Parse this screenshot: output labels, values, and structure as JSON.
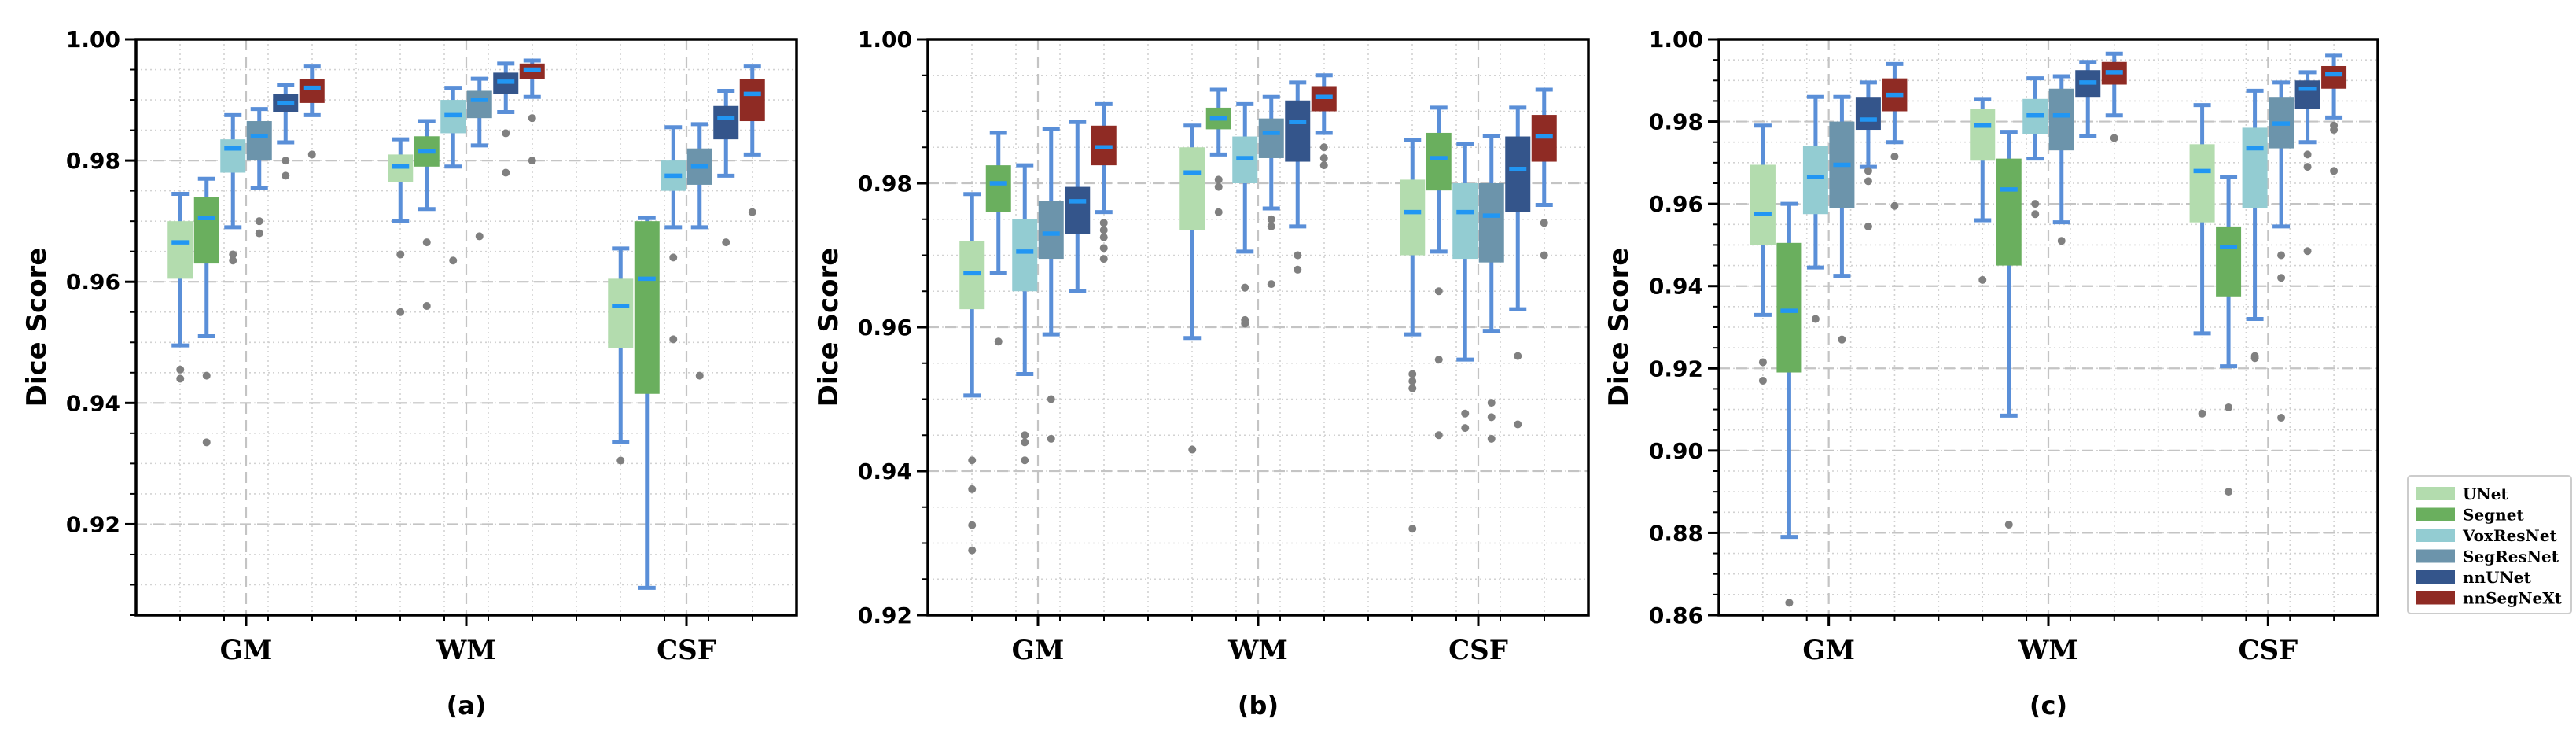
{
  "legend": {
    "entries": [
      {
        "name": "UNet",
        "color": "#b3dcae"
      },
      {
        "name": "Segnet",
        "color": "#6aaf5e"
      },
      {
        "name": "VoxResNet",
        "color": "#93ccd2"
      },
      {
        "name": "SegResNet",
        "color": "#6c94ab"
      },
      {
        "name": "nnUNet",
        "color": "#34558b"
      },
      {
        "name": "nnSegNeXt",
        "color": "#8f2b24"
      }
    ]
  },
  "style": {
    "whisker_color": "#5a8fd8",
    "median_color": "#2196f3",
    "outlier_color": "#808080"
  },
  "chart_data": [
    {
      "type": "box",
      "panel_label": "(a)",
      "ylabel": "Dice Score",
      "ylim": [
        0.905,
        1.0
      ],
      "yticks": [
        "0.92",
        "0.94",
        "0.96",
        "0.98",
        "1.00"
      ],
      "categories": [
        "GM",
        "WM",
        "CSF"
      ],
      "series": [
        {
          "name": "UNet",
          "boxes": [
            {
              "q1": 0.9605,
              "median": 0.9665,
              "q3": 0.97,
              "whislo": 0.9495,
              "whishi": 0.9745,
              "outliers": [
                0.9455,
                0.944
              ]
            },
            {
              "q1": 0.9765,
              "median": 0.979,
              "q3": 0.981,
              "whislo": 0.97,
              "whishi": 0.9835,
              "outliers": [
                0.9645,
                0.955
              ]
            },
            {
              "q1": 0.949,
              "median": 0.956,
              "q3": 0.9605,
              "whislo": 0.9335,
              "whishi": 0.9655,
              "outliers": [
                0.9305
              ]
            }
          ]
        },
        {
          "name": "Segnet",
          "boxes": [
            {
              "q1": 0.963,
              "median": 0.9705,
              "q3": 0.974,
              "whislo": 0.951,
              "whishi": 0.977,
              "outliers": [
                0.9445,
                0.9335
              ]
            },
            {
              "q1": 0.979,
              "median": 0.9815,
              "q3": 0.984,
              "whislo": 0.972,
              "whishi": 0.9865,
              "outliers": [
                0.9665,
                0.956
              ]
            },
            {
              "q1": 0.9415,
              "median": 0.9605,
              "q3": 0.97,
              "whislo": 0.9095,
              "whishi": 0.9705,
              "outliers": []
            }
          ]
        },
        {
          "name": "VoxResNet",
          "boxes": [
            {
              "q1": 0.978,
              "median": 0.982,
              "q3": 0.9835,
              "whislo": 0.969,
              "whishi": 0.9875,
              "outliers": [
                0.9645,
                0.9635
              ]
            },
            {
              "q1": 0.9845,
              "median": 0.9875,
              "q3": 0.99,
              "whislo": 0.979,
              "whishi": 0.992,
              "outliers": [
                0.9635
              ]
            },
            {
              "q1": 0.975,
              "median": 0.9775,
              "q3": 0.98,
              "whislo": 0.969,
              "whishi": 0.9855,
              "outliers": [
                0.9505,
                0.964
              ]
            }
          ]
        },
        {
          "name": "SegResNet",
          "boxes": [
            {
              "q1": 0.98,
              "median": 0.984,
              "q3": 0.9865,
              "whislo": 0.9755,
              "whishi": 0.9885,
              "outliers": [
                0.97,
                0.968
              ]
            },
            {
              "q1": 0.987,
              "median": 0.99,
              "q3": 0.9915,
              "whislo": 0.9825,
              "whishi": 0.9935,
              "outliers": [
                0.9675
              ]
            },
            {
              "q1": 0.976,
              "median": 0.979,
              "q3": 0.982,
              "whislo": 0.969,
              "whishi": 0.986,
              "outliers": [
                0.9445
              ]
            }
          ]
        },
        {
          "name": "nnUNet",
          "boxes": [
            {
              "q1": 0.988,
              "median": 0.9895,
              "q3": 0.991,
              "whislo": 0.983,
              "whishi": 0.9925,
              "outliers": [
                0.98,
                0.9775
              ]
            },
            {
              "q1": 0.991,
              "median": 0.993,
              "q3": 0.9945,
              "whislo": 0.988,
              "whishi": 0.996,
              "outliers": [
                0.9845,
                0.978
              ]
            },
            {
              "q1": 0.9835,
              "median": 0.987,
              "q3": 0.989,
              "whislo": 0.9775,
              "whishi": 0.9915,
              "outliers": [
                0.9665
              ]
            }
          ]
        },
        {
          "name": "nnSegNeXt",
          "boxes": [
            {
              "q1": 0.9895,
              "median": 0.992,
              "q3": 0.9935,
              "whislo": 0.9875,
              "whishi": 0.9955,
              "outliers": [
                0.981
              ]
            },
            {
              "q1": 0.9935,
              "median": 0.995,
              "q3": 0.996,
              "whislo": 0.9905,
              "whishi": 0.9965,
              "outliers": [
                0.987,
                0.98
              ]
            },
            {
              "q1": 0.9865,
              "median": 0.991,
              "q3": 0.9935,
              "whislo": 0.981,
              "whishi": 0.9955,
              "outliers": [
                0.9715
              ]
            }
          ]
        }
      ]
    },
    {
      "type": "box",
      "panel_label": "(b)",
      "ylabel": "Dice Score",
      "ylim": [
        0.92,
        1.0
      ],
      "yticks": [
        "0.92",
        "0.94",
        "0.96",
        "0.98",
        "1.00"
      ],
      "categories": [
        "GM",
        "WM",
        "CSF"
      ],
      "series": [
        {
          "name": "UNet",
          "boxes": [
            {
              "q1": 0.9625,
              "median": 0.9675,
              "q3": 0.972,
              "whislo": 0.9505,
              "whishi": 0.9785,
              "outliers": [
                0.9415,
                0.9375,
                0.9325,
                0.929
              ]
            },
            {
              "q1": 0.9735,
              "median": 0.9815,
              "q3": 0.985,
              "whislo": 0.9585,
              "whishi": 0.988,
              "outliers": [
                0.943
              ]
            },
            {
              "q1": 0.97,
              "median": 0.976,
              "q3": 0.9805,
              "whislo": 0.959,
              "whishi": 0.986,
              "outliers": [
                0.9535,
                0.9525,
                0.9515,
                0.932
              ]
            }
          ]
        },
        {
          "name": "Segnet",
          "boxes": [
            {
              "q1": 0.976,
              "median": 0.98,
              "q3": 0.9825,
              "whislo": 0.9675,
              "whishi": 0.987,
              "outliers": [
                0.958
              ]
            },
            {
              "q1": 0.9875,
              "median": 0.989,
              "q3": 0.9905,
              "whislo": 0.984,
              "whishi": 0.993,
              "outliers": [
                0.9805,
                0.9795,
                0.976
              ]
            },
            {
              "q1": 0.979,
              "median": 0.9835,
              "q3": 0.987,
              "whislo": 0.9705,
              "whishi": 0.9905,
              "outliers": [
                0.965,
                0.9555,
                0.945
              ]
            }
          ]
        },
        {
          "name": "VoxResNet",
          "boxes": [
            {
              "q1": 0.965,
              "median": 0.9705,
              "q3": 0.975,
              "whislo": 0.9535,
              "whishi": 0.9825,
              "outliers": [
                0.945,
                0.944,
                0.9415
              ]
            },
            {
              "q1": 0.98,
              "median": 0.9835,
              "q3": 0.9865,
              "whislo": 0.9705,
              "whishi": 0.991,
              "outliers": [
                0.9655,
                0.9605,
                0.961
              ]
            },
            {
              "q1": 0.9695,
              "median": 0.976,
              "q3": 0.98,
              "whislo": 0.9555,
              "whishi": 0.9855,
              "outliers": [
                0.946,
                0.948
              ]
            }
          ]
        },
        {
          "name": "SegResNet",
          "boxes": [
            {
              "q1": 0.9695,
              "median": 0.973,
              "q3": 0.9775,
              "whislo": 0.959,
              "whishi": 0.9875,
              "outliers": [
                0.95,
                0.9445
              ]
            },
            {
              "q1": 0.9835,
              "median": 0.987,
              "q3": 0.989,
              "whislo": 0.9765,
              "whishi": 0.992,
              "outliers": [
                0.975,
                0.974,
                0.966
              ]
            },
            {
              "q1": 0.969,
              "median": 0.9755,
              "q3": 0.98,
              "whislo": 0.9595,
              "whishi": 0.9865,
              "outliers": [
                0.9495,
                0.9475,
                0.9445
              ]
            }
          ]
        },
        {
          "name": "nnUNet",
          "boxes": [
            {
              "q1": 0.973,
              "median": 0.9775,
              "q3": 0.9795,
              "whislo": 0.965,
              "whishi": 0.9885,
              "outliers": []
            },
            {
              "q1": 0.983,
              "median": 0.9885,
              "q3": 0.9915,
              "whislo": 0.974,
              "whishi": 0.994,
              "outliers": [
                0.97,
                0.968
              ]
            },
            {
              "q1": 0.976,
              "median": 0.982,
              "q3": 0.9865,
              "whislo": 0.9625,
              "whishi": 0.9905,
              "outliers": [
                0.956,
                0.9465
              ]
            }
          ]
        },
        {
          "name": "nnSegNeXt",
          "boxes": [
            {
              "q1": 0.9825,
              "median": 0.985,
              "q3": 0.988,
              "whislo": 0.976,
              "whishi": 0.991,
              "outliers": [
                0.9745,
                0.9735,
                0.9725,
                0.971,
                0.9695
              ]
            },
            {
              "q1": 0.99,
              "median": 0.992,
              "q3": 0.9935,
              "whislo": 0.987,
              "whishi": 0.995,
              "outliers": [
                0.985,
                0.9835,
                0.9825
              ]
            },
            {
              "q1": 0.983,
              "median": 0.9865,
              "q3": 0.9895,
              "whislo": 0.977,
              "whishi": 0.993,
              "outliers": [
                0.9745,
                0.97
              ]
            }
          ]
        }
      ]
    },
    {
      "type": "box",
      "panel_label": "(c)",
      "ylabel": "Dice Score",
      "ylim": [
        0.86,
        1.0
      ],
      "yticks": [
        "0.86",
        "0.88",
        "0.90",
        "0.92",
        "0.94",
        "0.96",
        "0.98",
        "1.00"
      ],
      "categories": [
        "GM",
        "WM",
        "CSF"
      ],
      "series": [
        {
          "name": "UNet",
          "boxes": [
            {
              "q1": 0.95,
              "median": 0.9575,
              "q3": 0.9695,
              "whislo": 0.933,
              "whishi": 0.979,
              "outliers": [
                0.9215,
                0.917
              ]
            },
            {
              "q1": 0.9705,
              "median": 0.979,
              "q3": 0.983,
              "whislo": 0.956,
              "whishi": 0.9855,
              "outliers": [
                0.9415
              ]
            },
            {
              "q1": 0.9555,
              "median": 0.968,
              "q3": 0.9745,
              "whislo": 0.9285,
              "whishi": 0.984,
              "outliers": [
                0.909
              ]
            }
          ]
        },
        {
          "name": "Segnet",
          "boxes": [
            {
              "q1": 0.919,
              "median": 0.934,
              "q3": 0.9505,
              "whislo": 0.879,
              "whishi": 0.96,
              "outliers": [
                0.863
              ]
            },
            {
              "q1": 0.945,
              "median": 0.9635,
              "q3": 0.971,
              "whislo": 0.9085,
              "whishi": 0.9775,
              "outliers": [
                0.882
              ]
            },
            {
              "q1": 0.9375,
              "median": 0.9495,
              "q3": 0.9545,
              "whislo": 0.9205,
              "whishi": 0.9665,
              "outliers": [
                0.9105,
                0.89
              ]
            }
          ]
        },
        {
          "name": "VoxResNet",
          "boxes": [
            {
              "q1": 0.9575,
              "median": 0.9665,
              "q3": 0.974,
              "whislo": 0.9445,
              "whishi": 0.986,
              "outliers": [
                0.932
              ]
            },
            {
              "q1": 0.977,
              "median": 0.9815,
              "q3": 0.9855,
              "whislo": 0.971,
              "whishi": 0.9905,
              "outliers": [
                0.96,
                0.9575
              ]
            },
            {
              "q1": 0.959,
              "median": 0.9735,
              "q3": 0.9785,
              "whislo": 0.932,
              "whishi": 0.9875,
              "outliers": [
                0.923,
                0.9225
              ]
            }
          ]
        },
        {
          "name": "SegResNet",
          "boxes": [
            {
              "q1": 0.959,
              "median": 0.9695,
              "q3": 0.98,
              "whislo": 0.9425,
              "whishi": 0.986,
              "outliers": [
                0.927
              ]
            },
            {
              "q1": 0.973,
              "median": 0.9815,
              "q3": 0.988,
              "whislo": 0.9555,
              "whishi": 0.991,
              "outliers": [
                0.951
              ]
            },
            {
              "q1": 0.9735,
              "median": 0.9795,
              "q3": 0.986,
              "whislo": 0.9545,
              "whishi": 0.9895,
              "outliers": [
                0.9475,
                0.942,
                0.908
              ]
            }
          ]
        },
        {
          "name": "nnUNet",
          "boxes": [
            {
              "q1": 0.978,
              "median": 0.9805,
              "q3": 0.986,
              "whislo": 0.969,
              "whishi": 0.9895,
              "outliers": [
                0.968,
                0.9655,
                0.9545
              ]
            },
            {
              "q1": 0.986,
              "median": 0.9895,
              "q3": 0.9925,
              "whislo": 0.9765,
              "whishi": 0.9945,
              "outliers": []
            },
            {
              "q1": 0.983,
              "median": 0.988,
              "q3": 0.99,
              "whislo": 0.975,
              "whishi": 0.992,
              "outliers": [
                0.972,
                0.969,
                0.9485
              ]
            }
          ]
        },
        {
          "name": "nnSegNeXt",
          "boxes": [
            {
              "q1": 0.9825,
              "median": 0.9865,
              "q3": 0.9905,
              "whislo": 0.975,
              "whishi": 0.994,
              "outliers": [
                0.9715,
                0.9595
              ]
            },
            {
              "q1": 0.989,
              "median": 0.992,
              "q3": 0.9945,
              "whislo": 0.9815,
              "whishi": 0.9965,
              "outliers": [
                0.976
              ]
            },
            {
              "q1": 0.988,
              "median": 0.9915,
              "q3": 0.9935,
              "whislo": 0.981,
              "whishi": 0.996,
              "outliers": [
                0.979,
                0.978,
                0.968
              ]
            }
          ]
        }
      ]
    }
  ]
}
